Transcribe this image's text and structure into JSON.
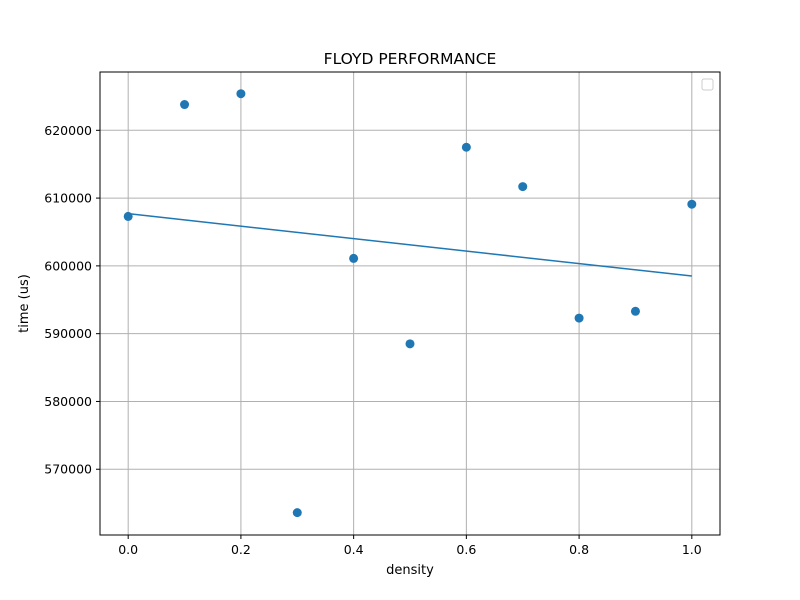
{
  "chart_data": {
    "type": "scatter",
    "title": "FLOYD PERFORMANCE",
    "xlabel": "density",
    "ylabel": "time (us)",
    "xlim": [
      -0.05,
      1.05
    ],
    "ylim": [
      560300,
      628600
    ],
    "x_ticks": [
      0.0,
      0.2,
      0.4,
      0.6,
      0.8,
      1.0
    ],
    "x_tick_labels": [
      "0.0",
      "0.2",
      "0.4",
      "0.6",
      "0.8",
      "1.0"
    ],
    "y_ticks": [
      570000,
      580000,
      590000,
      600000,
      610000,
      620000
    ],
    "y_tick_labels": [
      "570000",
      "580000",
      "590000",
      "600000",
      "610000",
      "620000"
    ],
    "grid": true,
    "legend": "top-right, empty",
    "colors": {
      "series": "#1f77b4",
      "grid": "#b0b0b0",
      "axes": "#000000"
    },
    "series": [
      {
        "kind": "points",
        "x": [
          0.0,
          0.1,
          0.2,
          0.3,
          0.4,
          0.5,
          0.6,
          0.7,
          0.8,
          0.9,
          1.0
        ],
        "y": [
          607300,
          623800,
          625400,
          563600,
          601100,
          588500,
          617500,
          611700,
          592300,
          593300,
          609100
        ]
      },
      {
        "kind": "fit-line",
        "x": [
          0.0,
          1.0
        ],
        "y": [
          607700,
          598500
        ]
      }
    ]
  }
}
